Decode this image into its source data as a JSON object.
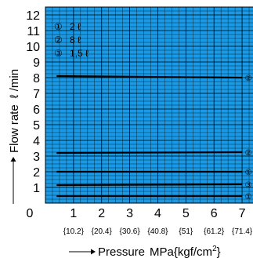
{
  "chart_data": {
    "type": "line",
    "xlabel": "Pressure",
    "xunit": "MPa{kgf/cm",
    "xunit_sup": "2",
    "xunit_close": "}",
    "ylabel": "Flow rate",
    "yunit": "ℓ /min",
    "xlim": [
      0,
      7.5
    ],
    "ylim": [
      0,
      12.5
    ],
    "x_ticks": [
      "1",
      "2",
      "3",
      "4",
      "5",
      "6",
      "7"
    ],
    "x_subticks": [
      "{10.2}",
      "{20.4}",
      "{30.6}",
      "{40.8}",
      "{51}",
      "{61.2}",
      "{71.4}"
    ],
    "y_ticks": [
      "1",
      "2",
      "3",
      "4",
      "5",
      "6",
      "7",
      "8",
      "9",
      "10",
      "11",
      "12"
    ],
    "origin_label": "0",
    "grid": true,
    "legend": {
      "placement": "top-left",
      "entries": [
        {
          "marker": "①",
          "label": "2 ℓ"
        },
        {
          "marker": "②",
          "label": "8 ℓ"
        },
        {
          "marker": "③",
          "label": "1,5 ℓ"
        }
      ]
    },
    "series": [
      {
        "marker": "②",
        "x": [
          0.4,
          7.0
        ],
        "y": [
          8.1,
          8.0
        ]
      },
      {
        "marker": "②",
        "x": [
          0.4,
          7.0
        ],
        "y": [
          3.2,
          3.25
        ]
      },
      {
        "marker": "①",
        "x": [
          0.4,
          7.0
        ],
        "y": [
          2.0,
          2.0
        ]
      },
      {
        "marker": "③",
        "x": [
          0.4,
          7.0
        ],
        "y": [
          1.15,
          1.2
        ]
      },
      {
        "marker": "①",
        "x": [
          0.4,
          7.0
        ],
        "y": [
          0.45,
          0.45
        ]
      }
    ],
    "colors": {
      "plot_background": "#1a9ae6",
      "grid": "#000000",
      "line": "#000000"
    }
  }
}
